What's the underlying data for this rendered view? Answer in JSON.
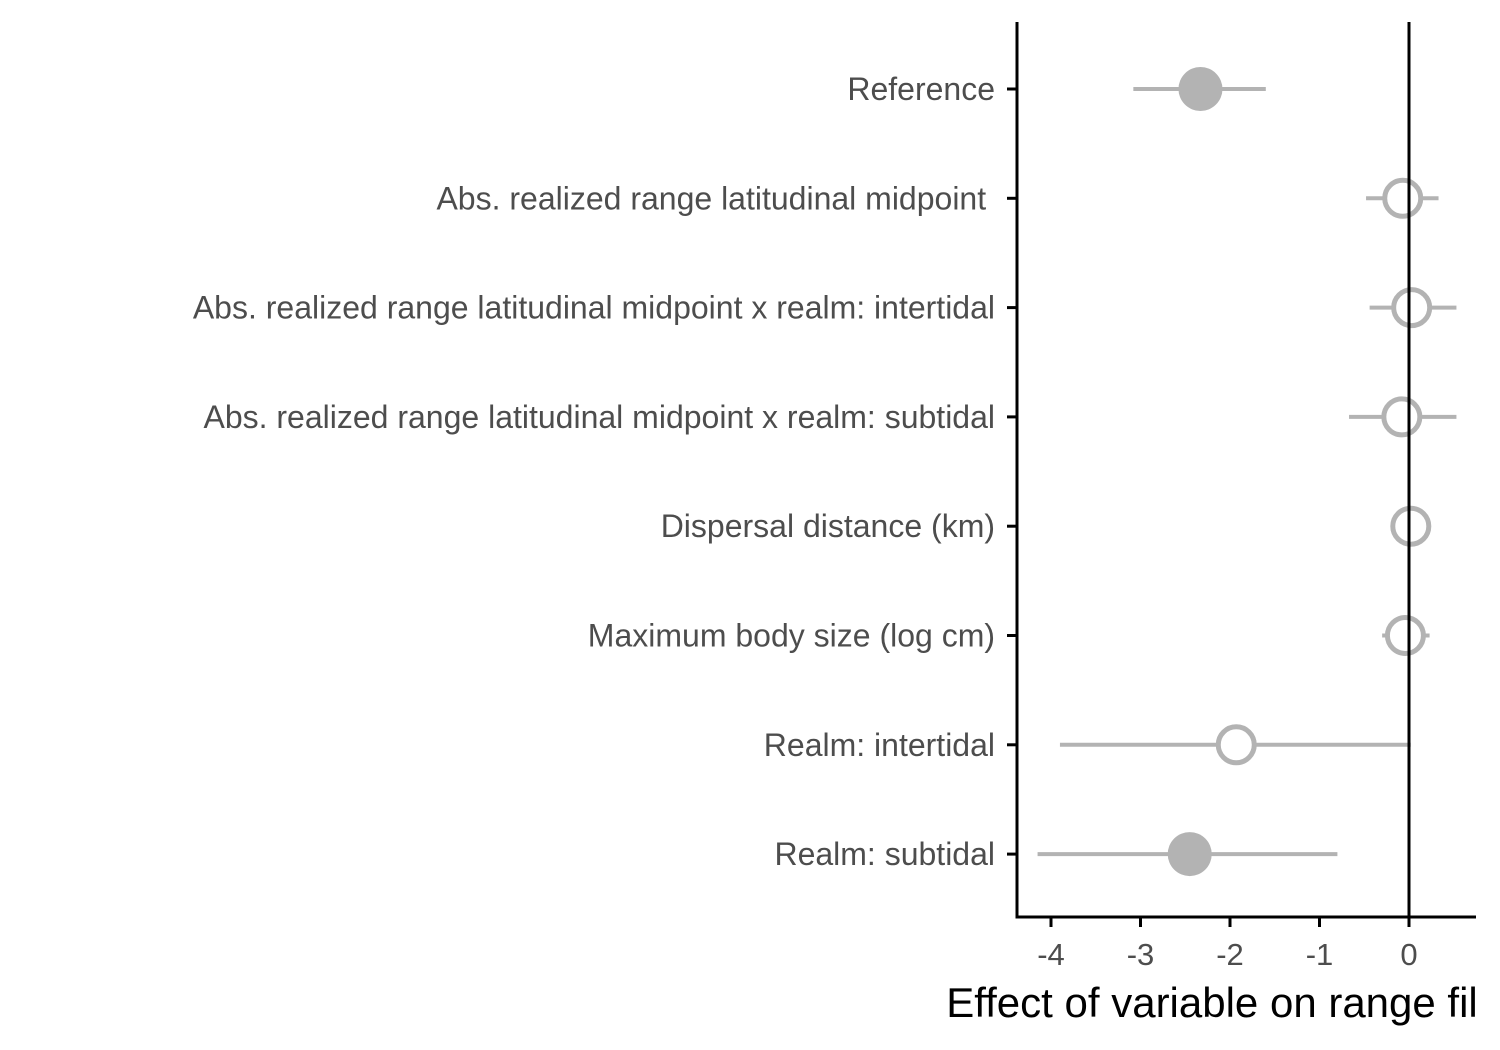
{
  "chart_data": {
    "type": "forest",
    "title": "",
    "xlabel": "Effect of variable on range fil",
    "ylabel": "",
    "xlim": [
      -4.4,
      0.75
    ],
    "x_ticks": [
      -4,
      -3,
      -2,
      -1,
      0
    ],
    "x_tick_labels": [
      "-4",
      "-3",
      "-2",
      "-1",
      "0"
    ],
    "reference_line_x": 0,
    "grid": false,
    "point_color": "#b3b3b3",
    "reference_line_color": "#000000",
    "points": [
      {
        "label": "Reference",
        "estimate": -2.33,
        "lower": -3.08,
        "upper": -1.6,
        "filled": true
      },
      {
        "label": "Abs. realized range latitudinal midpoint ",
        "estimate": -0.07,
        "lower": -0.48,
        "upper": 0.33,
        "filled": false
      },
      {
        "label": "Abs. realized range latitudinal midpoint x realm: intertidal",
        "estimate": 0.03,
        "lower": -0.44,
        "upper": 0.53,
        "filled": false
      },
      {
        "label": "Abs. realized range latitudinal midpoint x realm: subtidal",
        "estimate": -0.08,
        "lower": -0.67,
        "upper": 0.53,
        "filled": false
      },
      {
        "label": "Dispersal distance (km)",
        "estimate": 0.02,
        "lower": -0.02,
        "upper": 0.06,
        "filled": false
      },
      {
        "label": "Maximum body size (log cm)",
        "estimate": -0.04,
        "lower": -0.3,
        "upper": 0.23,
        "filled": false
      },
      {
        "label": "Realm: intertidal",
        "estimate": -1.93,
        "lower": -3.9,
        "upper": 0.02,
        "filled": false
      },
      {
        "label": "Realm: subtidal",
        "estimate": -2.45,
        "lower": -4.15,
        "upper": -0.8,
        "filled": true
      }
    ]
  }
}
